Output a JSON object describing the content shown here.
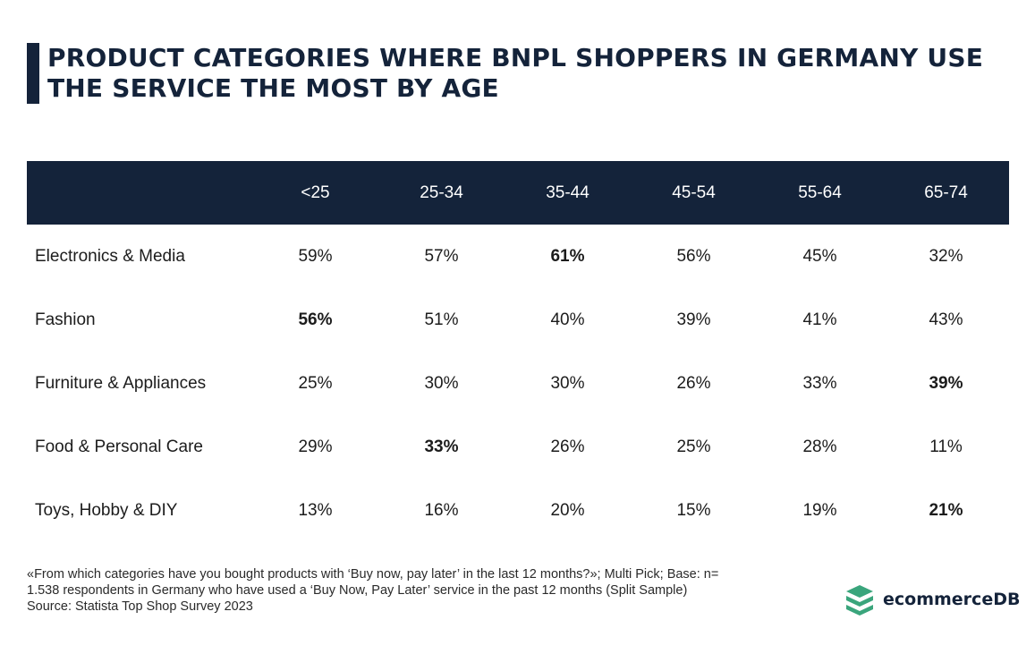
{
  "title": "PRODUCT CATEGORIES WHERE BNPL SHOPPERS IN GERMANY USE THE SERVICE THE MOST BY AGE",
  "chart_data": {
    "type": "table",
    "columns": [
      "",
      "<25",
      "25-34",
      "35-44",
      "45-54",
      "55-64",
      "65-74"
    ],
    "rows": [
      {
        "category": "Electronics & Media",
        "values": [
          "59%",
          "57%",
          "61%",
          "56%",
          "45%",
          "32%"
        ],
        "bold": [
          false,
          false,
          true,
          false,
          false,
          false
        ]
      },
      {
        "category": "Fashion",
        "values": [
          "56%",
          "51%",
          "40%",
          "39%",
          "41%",
          "43%"
        ],
        "bold": [
          true,
          false,
          false,
          false,
          false,
          false
        ]
      },
      {
        "category": "Furniture & Appliances",
        "values": [
          "25%",
          "30%",
          "30%",
          "26%",
          "33%",
          "39%"
        ],
        "bold": [
          false,
          false,
          false,
          false,
          false,
          true
        ]
      },
      {
        "category": "Food & Personal Care",
        "values": [
          "29%",
          "33%",
          "26%",
          "25%",
          "28%",
          "11%"
        ],
        "bold": [
          false,
          true,
          false,
          false,
          false,
          false
        ]
      },
      {
        "category": "Toys, Hobby & DIY",
        "values": [
          "13%",
          "16%",
          "20%",
          "15%",
          "19%",
          "21%"
        ],
        "bold": [
          false,
          false,
          false,
          false,
          false,
          true
        ]
      }
    ]
  },
  "footnote": {
    "line1": "«From which categories have you bought products with ‘Buy now, pay later’ in the last 12 months?»; Multi Pick; Base: n=",
    "line2": "1.538 respondents in Germany who have used a ‘Buy Now, Pay Later’ service in the past 12 months (Split Sample)",
    "line3": "Source: Statista Top Shop Survey 2023"
  },
  "logo": {
    "text": "ecommerceDB",
    "icon": "stacked-layers-icon",
    "color": "#3aa57c"
  },
  "colors": {
    "header_bg": "#14233a",
    "accent": "#14233a"
  }
}
